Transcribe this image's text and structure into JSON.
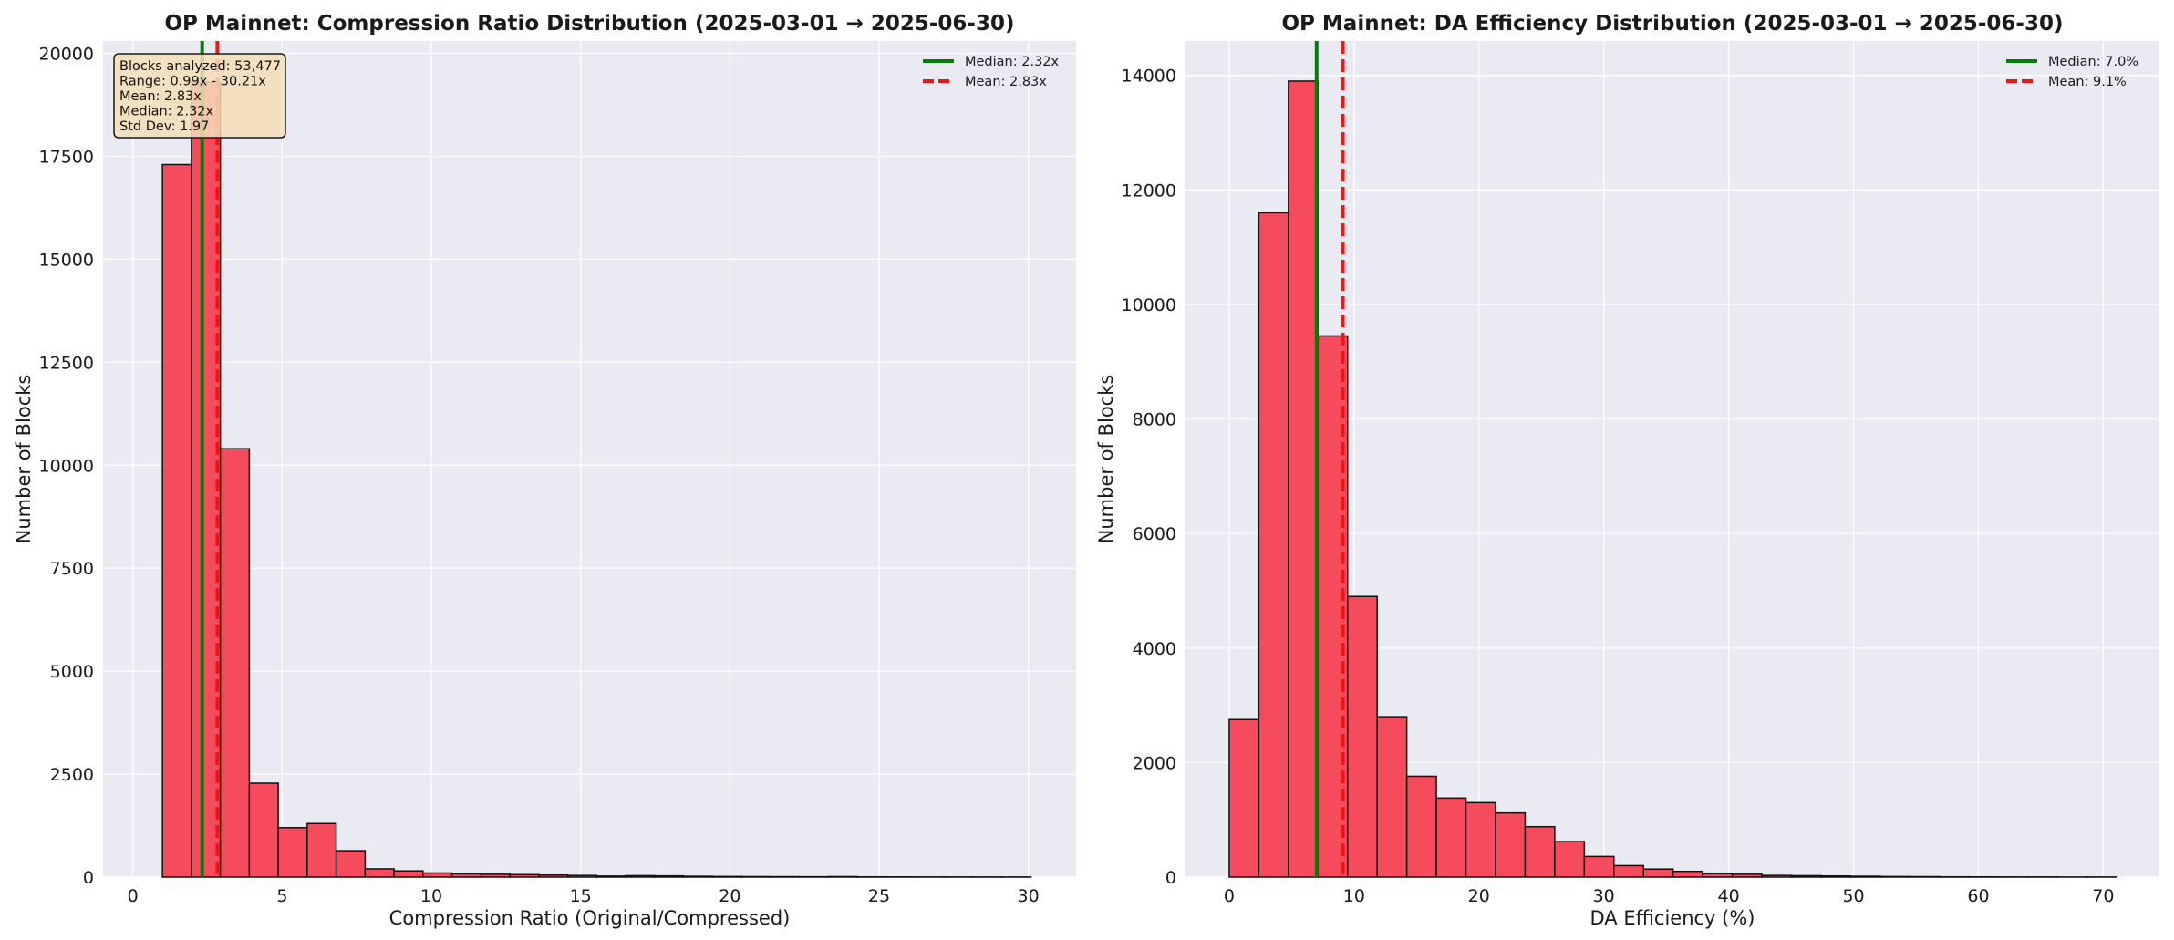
{
  "colors": {
    "background": "#eaeaf2",
    "grid": "#ffffff",
    "bar_fill": "#f64b5d",
    "bar_edge": "#111111",
    "median_line": "#087b08",
    "mean_line": "#f01515",
    "stats_box_fill": "#f5deb8"
  },
  "chart_data": [
    {
      "type": "bar",
      "title": "OP Mainnet: Compression Ratio Distribution (2025-03-01 → 2025-06-30)",
      "xlabel": "Compression Ratio (Original/Compressed)",
      "ylabel": "Number of Blocks",
      "xlim": [
        -1.0,
        31.6
      ],
      "ylim": [
        0,
        20300
      ],
      "xticks": [
        0,
        5,
        10,
        15,
        20,
        25,
        30
      ],
      "yticks": [
        0,
        2500,
        5000,
        7500,
        10000,
        12500,
        15000,
        17500,
        20000
      ],
      "grid": true,
      "bins": [
        {
          "x0": 0.99,
          "x1": 1.96,
          "count": 17300
        },
        {
          "x0": 1.96,
          "x1": 2.93,
          "count": 19300
        },
        {
          "x0": 2.93,
          "x1": 3.9,
          "count": 10400
        },
        {
          "x0": 3.9,
          "x1": 4.87,
          "count": 2280
        },
        {
          "x0": 4.87,
          "x1": 5.84,
          "count": 1200
        },
        {
          "x0": 5.84,
          "x1": 6.81,
          "count": 1300
        },
        {
          "x0": 6.81,
          "x1": 7.78,
          "count": 640
        },
        {
          "x0": 7.78,
          "x1": 8.75,
          "count": 200
        },
        {
          "x0": 8.75,
          "x1": 9.72,
          "count": 150
        },
        {
          "x0": 9.72,
          "x1": 10.69,
          "count": 100
        },
        {
          "x0": 10.69,
          "x1": 11.66,
          "count": 80
        },
        {
          "x0": 11.66,
          "x1": 12.63,
          "count": 70
        },
        {
          "x0": 12.63,
          "x1": 13.6,
          "count": 60
        },
        {
          "x0": 13.6,
          "x1": 14.57,
          "count": 50
        },
        {
          "x0": 14.57,
          "x1": 15.54,
          "count": 40
        },
        {
          "x0": 15.54,
          "x1": 16.51,
          "count": 25
        },
        {
          "x0": 16.51,
          "x1": 17.48,
          "count": 35
        },
        {
          "x0": 17.48,
          "x1": 18.45,
          "count": 30
        },
        {
          "x0": 18.45,
          "x1": 19.42,
          "count": 20
        },
        {
          "x0": 19.42,
          "x1": 20.39,
          "count": 15
        },
        {
          "x0": 20.39,
          "x1": 21.36,
          "count": 12
        },
        {
          "x0": 21.36,
          "x1": 22.33,
          "count": 10
        },
        {
          "x0": 22.33,
          "x1": 23.3,
          "count": 8
        },
        {
          "x0": 23.3,
          "x1": 24.27,
          "count": 12
        },
        {
          "x0": 24.27,
          "x1": 25.24,
          "count": 6
        },
        {
          "x0": 25.24,
          "x1": 26.21,
          "count": 5
        },
        {
          "x0": 26.21,
          "x1": 27.18,
          "count": 4
        },
        {
          "x0": 27.18,
          "x1": 28.15,
          "count": 4
        },
        {
          "x0": 28.15,
          "x1": 29.12,
          "count": 3
        },
        {
          "x0": 29.12,
          "x1": 30.09,
          "count": 3
        }
      ],
      "reference_lines": [
        {
          "label": "Median: 2.32x",
          "x": 2.32,
          "style": "solid",
          "color": "#087b08"
        },
        {
          "label": "Mean: 2.83x",
          "x": 2.83,
          "style": "dashed",
          "color": "#f01515"
        }
      ],
      "legend_position": "top-right",
      "stats_box": [
        "Blocks analyzed: 53,477",
        "Range: 0.99x - 30.21x",
        "Mean: 2.83x",
        "Median: 2.32x",
        "Std Dev: 1.97"
      ]
    },
    {
      "type": "bar",
      "title": "OP Mainnet: DA Efficiency Distribution (2025-03-01 → 2025-06-30)",
      "xlabel": "DA Efficiency (%)",
      "ylabel": "Number of Blocks",
      "xlim": [
        -3.5,
        74.5
      ],
      "ylim": [
        0,
        14600
      ],
      "xticks": [
        0,
        10,
        20,
        30,
        40,
        50,
        60,
        70
      ],
      "yticks": [
        0,
        2000,
        4000,
        6000,
        8000,
        10000,
        12000,
        14000
      ],
      "grid": true,
      "bins": [
        {
          "x0": 0.0,
          "x1": 2.37,
          "count": 2750
        },
        {
          "x0": 2.37,
          "x1": 4.74,
          "count": 11600
        },
        {
          "x0": 4.74,
          "x1": 7.11,
          "count": 13900
        },
        {
          "x0": 7.11,
          "x1": 9.48,
          "count": 9450
        },
        {
          "x0": 9.48,
          "x1": 11.85,
          "count": 4900
        },
        {
          "x0": 11.85,
          "x1": 14.22,
          "count": 2800
        },
        {
          "x0": 14.22,
          "x1": 16.59,
          "count": 1760
        },
        {
          "x0": 16.59,
          "x1": 18.96,
          "count": 1380
        },
        {
          "x0": 18.96,
          "x1": 21.33,
          "count": 1300
        },
        {
          "x0": 21.33,
          "x1": 23.7,
          "count": 1120
        },
        {
          "x0": 23.7,
          "x1": 26.07,
          "count": 880
        },
        {
          "x0": 26.07,
          "x1": 28.44,
          "count": 620
        },
        {
          "x0": 28.44,
          "x1": 30.81,
          "count": 360
        },
        {
          "x0": 30.81,
          "x1": 33.18,
          "count": 200
        },
        {
          "x0": 33.18,
          "x1": 35.55,
          "count": 140
        },
        {
          "x0": 35.55,
          "x1": 37.92,
          "count": 100
        },
        {
          "x0": 37.92,
          "x1": 40.29,
          "count": 60
        },
        {
          "x0": 40.29,
          "x1": 42.66,
          "count": 50
        },
        {
          "x0": 42.66,
          "x1": 45.03,
          "count": 30
        },
        {
          "x0": 45.03,
          "x1": 47.4,
          "count": 25
        },
        {
          "x0": 47.4,
          "x1": 49.77,
          "count": 20
        },
        {
          "x0": 49.77,
          "x1": 52.14,
          "count": 15
        },
        {
          "x0": 52.14,
          "x1": 54.51,
          "count": 10
        },
        {
          "x0": 54.51,
          "x1": 56.88,
          "count": 8
        },
        {
          "x0": 56.88,
          "x1": 59.25,
          "count": 5
        },
        {
          "x0": 59.25,
          "x1": 61.62,
          "count": 4
        },
        {
          "x0": 61.62,
          "x1": 63.99,
          "count": 3
        },
        {
          "x0": 63.99,
          "x1": 66.36,
          "count": 3
        },
        {
          "x0": 66.36,
          "x1": 68.73,
          "count": 2
        },
        {
          "x0": 68.73,
          "x1": 71.1,
          "count": 2
        }
      ],
      "reference_lines": [
        {
          "label": "Median: 7.0%",
          "x": 7.0,
          "style": "solid",
          "color": "#087b08"
        },
        {
          "label": "Mean: 9.1%",
          "x": 9.1,
          "style": "dashed",
          "color": "#f01515"
        }
      ],
      "legend_position": "top-right"
    }
  ]
}
